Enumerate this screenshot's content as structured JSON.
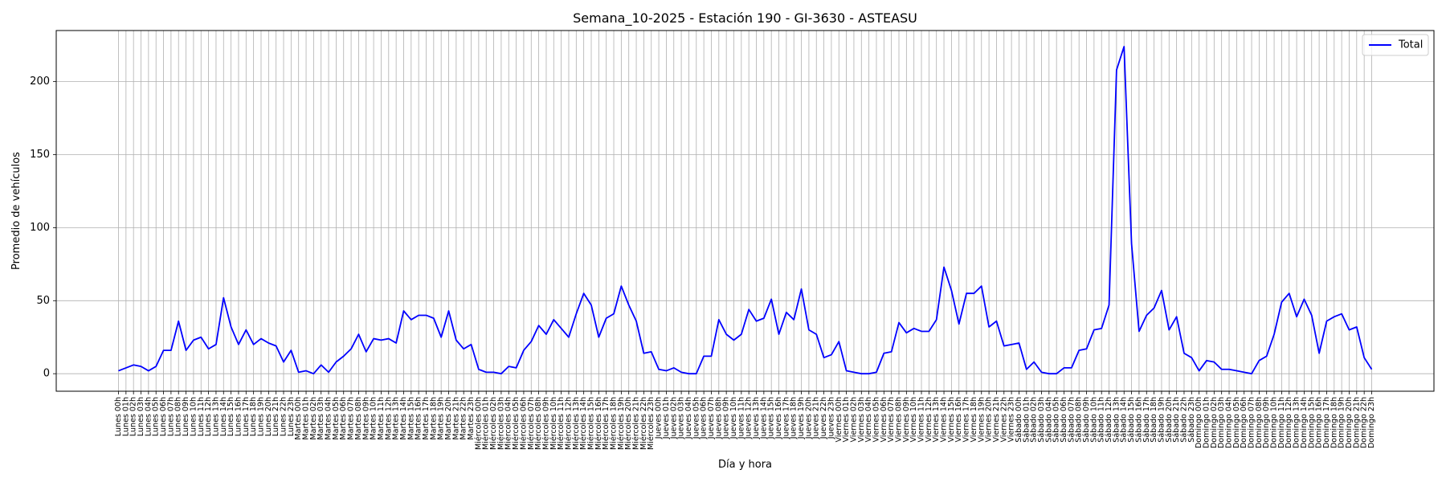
{
  "chart_data": {
    "type": "line",
    "title": "Semana_10-2025 - Estación 190 - GI-3630  - ASTEASU",
    "xlabel": "Día y hora",
    "ylabel": "Promedio de vehículos",
    "ylim": [
      -12,
      235
    ],
    "yticks": [
      0,
      50,
      100,
      150,
      200
    ],
    "grid": true,
    "legend_position": "top-right",
    "series_color": "#0000ff",
    "categories": [
      "Lunes 00h",
      "Lunes 01h",
      "Lunes 02h",
      "Lunes 03h",
      "Lunes 04h",
      "Lunes 05h",
      "Lunes 06h",
      "Lunes 07h",
      "Lunes 08h",
      "Lunes 09h",
      "Lunes 10h",
      "Lunes 11h",
      "Lunes 12h",
      "Lunes 13h",
      "Lunes 14h",
      "Lunes 15h",
      "Lunes 16h",
      "Lunes 17h",
      "Lunes 18h",
      "Lunes 19h",
      "Lunes 20h",
      "Lunes 21h",
      "Lunes 22h",
      "Lunes 23h",
      "Martes 00h",
      "Martes 01h",
      "Martes 02h",
      "Martes 03h",
      "Martes 04h",
      "Martes 05h",
      "Martes 06h",
      "Martes 07h",
      "Martes 08h",
      "Martes 09h",
      "Martes 10h",
      "Martes 11h",
      "Martes 12h",
      "Martes 13h",
      "Martes 14h",
      "Martes 15h",
      "Martes 16h",
      "Martes 17h",
      "Martes 18h",
      "Martes 19h",
      "Martes 20h",
      "Martes 21h",
      "Martes 22h",
      "Martes 23h",
      "Miércoles 00h",
      "Miércoles 01h",
      "Miércoles 02h",
      "Miércoles 03h",
      "Miércoles 04h",
      "Miércoles 05h",
      "Miércoles 06h",
      "Miércoles 07h",
      "Miércoles 08h",
      "Miércoles 09h",
      "Miércoles 10h",
      "Miércoles 11h",
      "Miércoles 12h",
      "Miércoles 13h",
      "Miércoles 14h",
      "Miércoles 15h",
      "Miércoles 16h",
      "Miércoles 17h",
      "Miércoles 18h",
      "Miércoles 19h",
      "Miércoles 20h",
      "Miércoles 21h",
      "Miércoles 22h",
      "Miércoles 23h",
      "Jueves 00h",
      "Jueves 01h",
      "Jueves 02h",
      "Jueves 03h",
      "Jueves 04h",
      "Jueves 05h",
      "Jueves 06h",
      "Jueves 07h",
      "Jueves 08h",
      "Jueves 09h",
      "Jueves 10h",
      "Jueves 11h",
      "Jueves 12h",
      "Jueves 13h",
      "Jueves 14h",
      "Jueves 15h",
      "Jueves 16h",
      "Jueves 17h",
      "Jueves 18h",
      "Jueves 19h",
      "Jueves 20h",
      "Jueves 21h",
      "Jueves 22h",
      "Jueves 23h",
      "Viernes 00h",
      "Viernes 01h",
      "Viernes 02h",
      "Viernes 03h",
      "Viernes 04h",
      "Viernes 05h",
      "Viernes 06h",
      "Viernes 07h",
      "Viernes 08h",
      "Viernes 09h",
      "Viernes 10h",
      "Viernes 11h",
      "Viernes 12h",
      "Viernes 13h",
      "Viernes 14h",
      "Viernes 15h",
      "Viernes 16h",
      "Viernes 17h",
      "Viernes 18h",
      "Viernes 19h",
      "Viernes 20h",
      "Viernes 21h",
      "Viernes 22h",
      "Viernes 23h",
      "Sábado 00h",
      "Sábado 01h",
      "Sábado 02h",
      "Sábado 03h",
      "Sábado 04h",
      "Sábado 05h",
      "Sábado 06h",
      "Sábado 07h",
      "Sábado 08h",
      "Sábado 09h",
      "Sábado 10h",
      "Sábado 11h",
      "Sábado 12h",
      "Sábado 13h",
      "Sábado 14h",
      "Sábado 15h",
      "Sábado 16h",
      "Sábado 17h",
      "Sábado 18h",
      "Sábado 19h",
      "Sábado 20h",
      "Sábado 21h",
      "Sábado 22h",
      "Sábado 23h",
      "Domingo 00h",
      "Domingo 01h",
      "Domingo 02h",
      "Domingo 03h",
      "Domingo 04h",
      "Domingo 05h",
      "Domingo 06h",
      "Domingo 07h",
      "Domingo 08h",
      "Domingo 09h",
      "Domingo 10h",
      "Domingo 11h",
      "Domingo 12h",
      "Domingo 13h",
      "Domingo 14h",
      "Domingo 15h",
      "Domingo 16h",
      "Domingo 17h",
      "Domingo 18h",
      "Domingo 19h",
      "Domingo 20h",
      "Domingo 21h",
      "Domingo 22h",
      "Domingo 23h"
    ],
    "series": [
      {
        "name": "Total",
        "values": [
          2,
          4,
          6,
          5,
          2,
          5,
          16,
          16,
          36,
          16,
          23,
          25,
          17,
          20,
          52,
          32,
          20,
          30,
          20,
          24,
          21,
          19,
          8,
          16,
          1,
          2,
          0,
          6,
          1,
          8,
          12,
          17,
          27,
          15,
          24,
          23,
          24,
          21,
          43,
          37,
          40,
          40,
          38,
          25,
          43,
          23,
          17,
          20,
          3,
          1,
          1,
          0,
          5,
          4,
          16,
          22,
          33,
          27,
          37,
          31,
          25,
          41,
          55,
          47,
          25,
          38,
          41,
          60,
          47,
          36,
          14,
          15,
          3,
          2,
          4,
          1,
          0,
          0,
          12,
          12,
          37,
          27,
          23,
          27,
          44,
          36,
          38,
          51,
          27,
          42,
          37,
          58,
          30,
          27,
          11,
          13,
          22,
          2,
          1,
          0,
          0,
          1,
          14,
          15,
          35,
          28,
          31,
          29,
          29,
          37,
          73,
          57,
          34,
          55,
          55,
          60,
          32,
          36,
          19,
          20,
          21,
          3,
          8,
          1,
          0,
          0,
          4,
          4,
          16,
          17,
          30,
          31,
          47,
          208,
          224,
          89,
          29,
          40,
          45,
          57,
          30,
          39,
          14,
          11,
          2,
          9,
          8,
          3,
          3,
          2,
          1,
          0,
          9,
          12,
          27,
          49,
          55,
          39,
          51,
          40,
          14,
          36,
          39,
          41,
          30,
          32,
          11,
          3
        ]
      }
    ]
  }
}
